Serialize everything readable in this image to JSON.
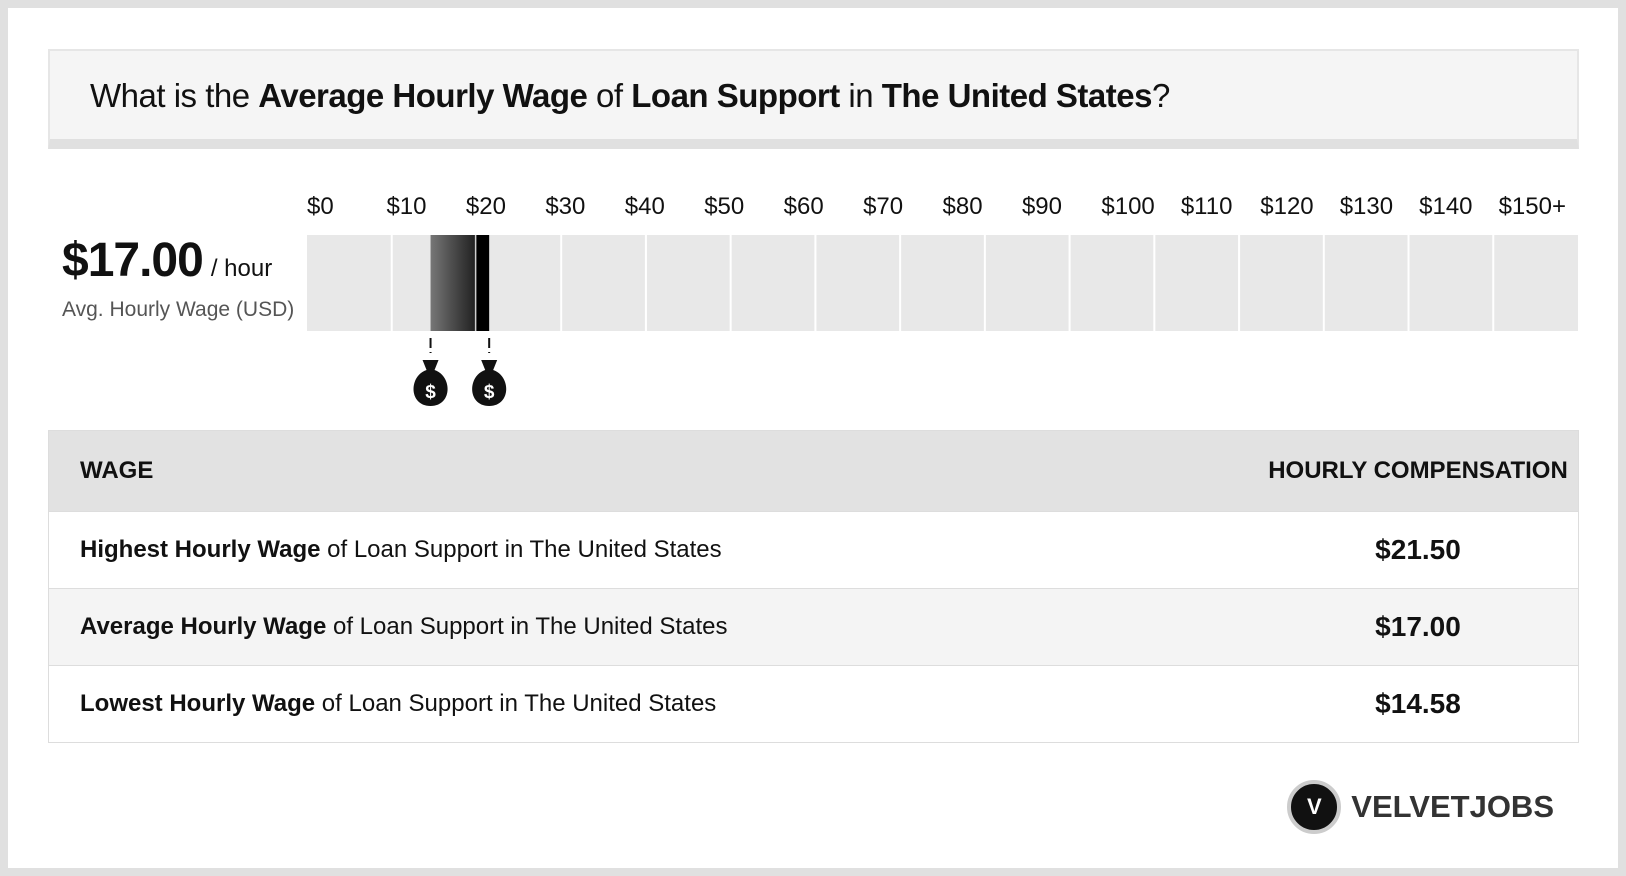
{
  "title": {
    "parts": [
      "What is the ",
      "Average Hourly Wage",
      " of ",
      "Loan Support",
      " in ",
      "The United States",
      "?"
    ]
  },
  "summary": {
    "unit": "/ hour",
    "caption": "Avg. Hourly Wage (USD)"
  },
  "scale": {
    "xlim": [
      0,
      150
    ],
    "xticks": [
      {
        "value": 0,
        "label": "$0"
      },
      {
        "value": 10,
        "label": "$10"
      },
      {
        "value": 20,
        "label": "$20"
      },
      {
        "value": 30,
        "label": "$30"
      },
      {
        "value": 40,
        "label": "$40"
      },
      {
        "value": 50,
        "label": "$50"
      },
      {
        "value": 60,
        "label": "$60"
      },
      {
        "value": 70,
        "label": "$70"
      },
      {
        "value": 80,
        "label": "$80"
      },
      {
        "value": 90,
        "label": "$90"
      },
      {
        "value": 100,
        "label": "$100"
      },
      {
        "value": 110,
        "label": "$110"
      },
      {
        "value": 120,
        "label": "$120"
      },
      {
        "value": 130,
        "label": "$130"
      },
      {
        "value": 140,
        "label": "$140"
      },
      {
        "value": 150,
        "label": "$150+"
      }
    ],
    "marker_symbol": "$"
  },
  "table": {
    "headers": [
      "WAGE",
      "HOURLY COMPENSATION"
    ],
    "rows": [
      {
        "bold": "Highest Hourly Wage",
        "text": " of Loan Support in The United States",
        "value": {
          "value": 21.5,
          "label": "$21.50"
        }
      },
      {
        "bold": "Average Hourly Wage",
        "text": " of Loan Support in The United States",
        "value": {
          "value": 17,
          "label": "$17.00"
        }
      },
      {
        "bold": "Lowest Hourly Wage",
        "text": " of Loan Support in The United States",
        "value": {
          "value": 14.58,
          "label": "$14.58"
        }
      }
    ]
  },
  "brand": {
    "logo_letter": "V",
    "name": "VELVETJOBS"
  }
}
